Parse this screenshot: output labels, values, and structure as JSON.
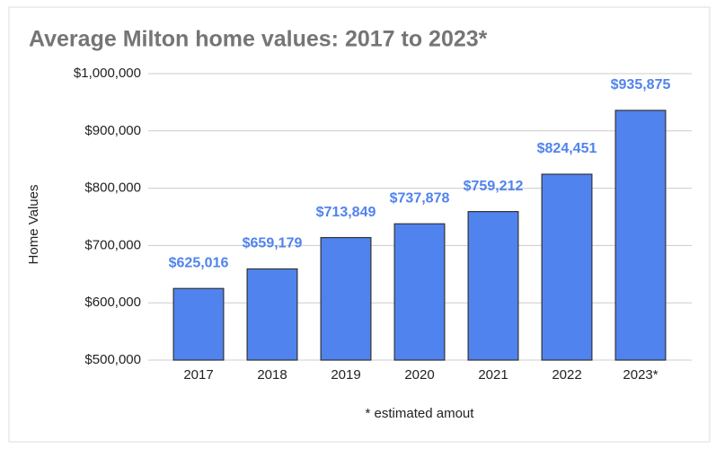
{
  "chart_data": {
    "type": "bar",
    "title": "Average Milton home values: 2017 to 2023*",
    "y_label": "Home Values",
    "note": "* estimated amout",
    "categories": [
      "2017",
      "2018",
      "2019",
      "2020",
      "2021",
      "2022",
      "2023*"
    ],
    "values": [
      625016,
      659179,
      713849,
      737878,
      759212,
      824451,
      935875
    ],
    "value_labels": [
      "$625,016",
      "$659,179",
      "$713,849",
      "$737,878",
      "$759,212",
      "$824,451",
      "$935,875"
    ],
    "color": "#5083ee",
    "ylim": [
      500000,
      1000000
    ],
    "yticks": [
      {
        "value": 500000,
        "label": "$500,000"
      },
      {
        "value": 600000,
        "label": "$600,000"
      },
      {
        "value": 700000,
        "label": "$700,000"
      },
      {
        "value": 800000,
        "label": "$800,000"
      },
      {
        "value": 900000,
        "label": "$900,000"
      },
      {
        "value": 1000000,
        "label": "$1,000,000"
      }
    ],
    "grid": true
  }
}
